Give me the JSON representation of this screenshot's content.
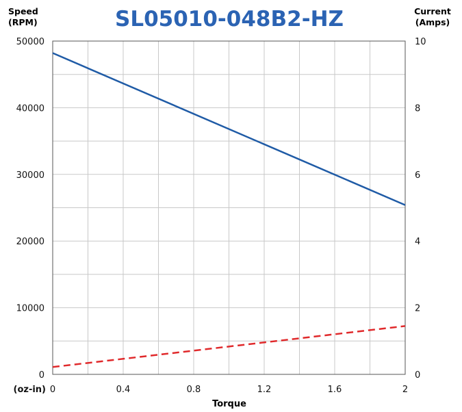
{
  "chart_data": {
    "type": "line",
    "title": "SL05010-048B2-HZ",
    "xlabel": "Torque",
    "xunit": "(oz-in)",
    "ylabel_left": [
      "Speed",
      "(RPM)"
    ],
    "ylabel_right": [
      "Current",
      "(Amps)"
    ],
    "xlim": [
      0,
      2
    ],
    "ylim_left": [
      0,
      50000
    ],
    "ylim_right": [
      0,
      10
    ],
    "x_ticks": [
      "0",
      "0.4",
      "0.8",
      "1.2",
      "1.6",
      "2"
    ],
    "y_left_ticks": [
      "0",
      "10000",
      "20000",
      "30000",
      "40000",
      "50000"
    ],
    "y_right_ticks": [
      "0",
      "2",
      "4",
      "6",
      "8",
      "10"
    ],
    "grid": true,
    "series": [
      {
        "axis": "left",
        "style": "solid",
        "color": "#1f5ba6",
        "x": [
          0,
          2
        ],
        "y": [
          48200,
          25400
        ]
      },
      {
        "axis": "right",
        "style": "dashed",
        "color": "#e0292b",
        "x": [
          0,
          2
        ],
        "y": [
          0.22,
          1.45
        ]
      }
    ],
    "colors": {
      "title": "#2b63b3",
      "grid": "#c8c8c8",
      "axis": "#555555"
    }
  }
}
